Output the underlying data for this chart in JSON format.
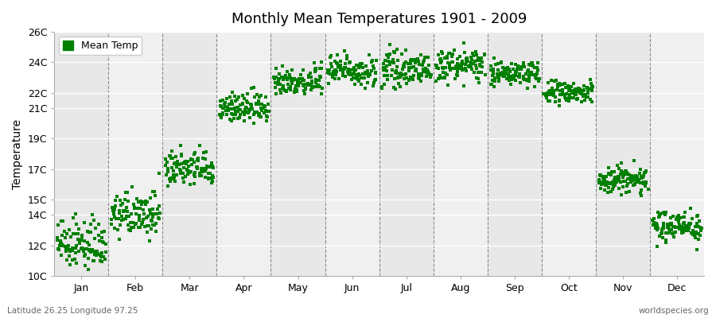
{
  "title": "Monthly Mean Temperatures 1901 - 2009",
  "ylabel": "Temperature",
  "subtitle_left": "Latitude 26.25 Longitude 97.25",
  "subtitle_right": "worldspecies.org",
  "legend_label": "Mean Temp",
  "dot_color": "#008000",
  "bg_color": "#ffffff",
  "plot_bg_color": "#f0f0f0",
  "ylim": [
    10,
    26
  ],
  "ytick_vals": [
    10,
    12,
    14,
    15,
    17,
    19,
    21,
    22,
    24,
    26
  ],
  "ytick_labels": [
    "10C",
    "12C",
    "14C",
    "15C",
    "17C",
    "19C",
    "21C",
    "22C",
    "24C",
    "26C"
  ],
  "months": [
    "Jan",
    "Feb",
    "Mar",
    "Apr",
    "May",
    "Jun",
    "Jul",
    "Aug",
    "Sep",
    "Oct",
    "Nov",
    "Dec"
  ],
  "month_mean_temps": [
    12.0,
    14.0,
    17.0,
    21.0,
    22.8,
    23.5,
    23.5,
    23.8,
    23.3,
    22.0,
    16.3,
    13.3
  ],
  "month_temp_std": [
    0.8,
    0.7,
    0.6,
    0.5,
    0.5,
    0.5,
    0.5,
    0.5,
    0.4,
    0.4,
    0.5,
    0.5
  ],
  "n_years": 109,
  "year_start": 1901,
  "year_end": 2009,
  "title_fontsize": 13,
  "axis_label_fontsize": 10,
  "tick_fontsize": 9,
  "dot_size": 5
}
